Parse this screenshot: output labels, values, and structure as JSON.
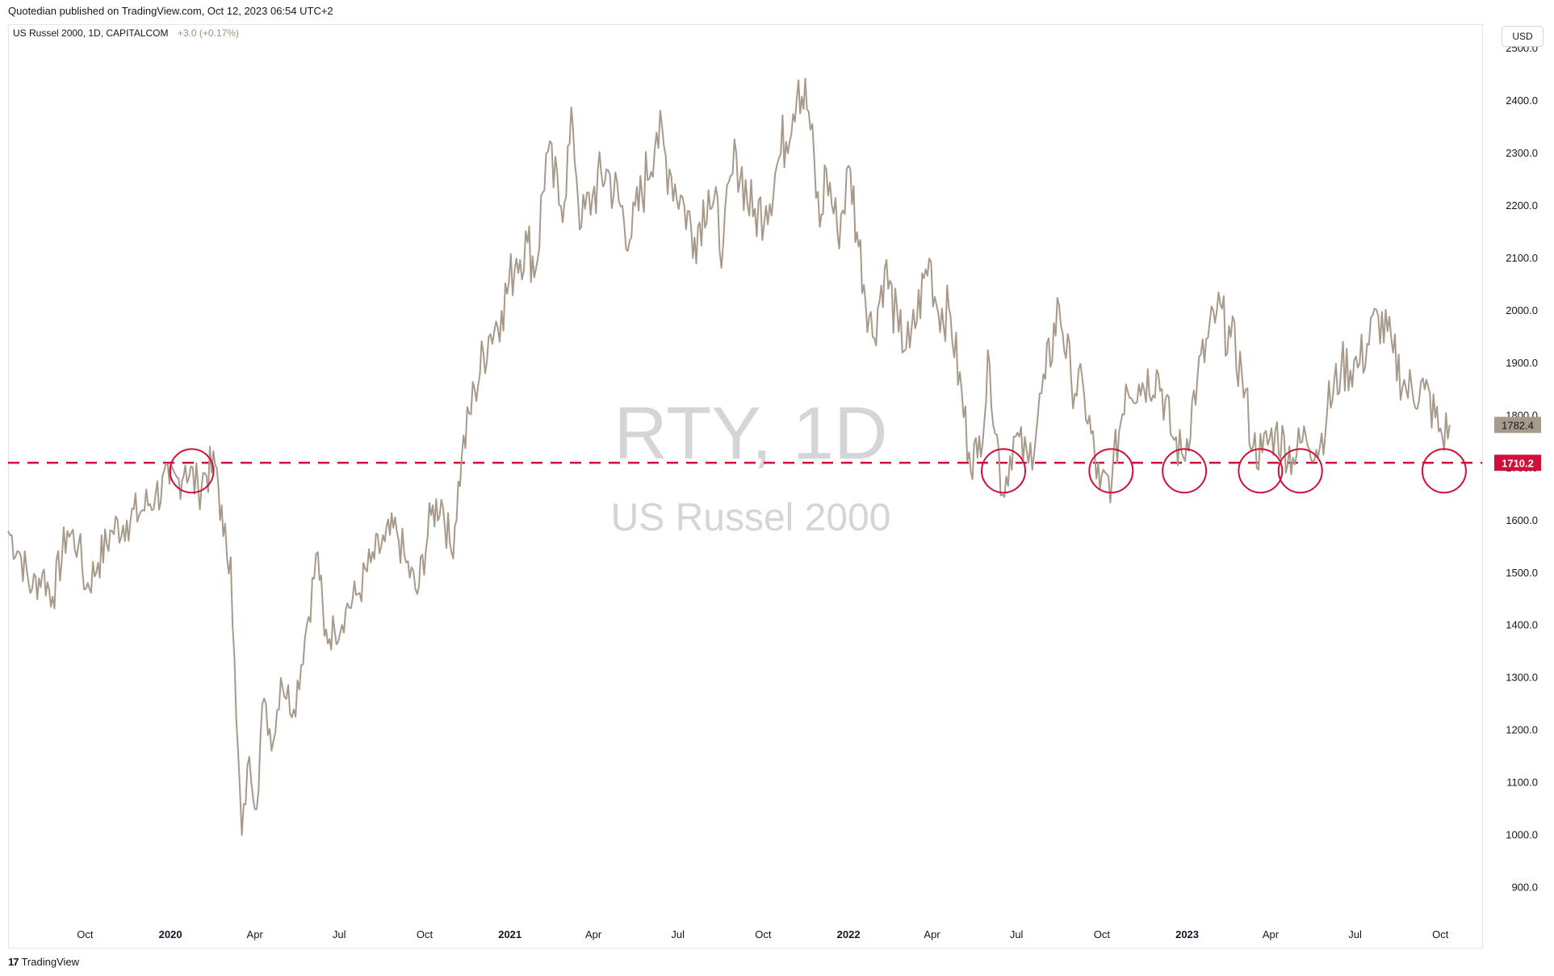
{
  "header": {
    "published_line": "Quotedian published on TradingView.com, Oct 12, 2023 06:54 UTC+2",
    "legend_title": "US Russel 2000, 1D, CAPITALCOM",
    "legend_change": "+3.0 (+0.17%)"
  },
  "currency_button": "USD",
  "watermark": {
    "symbol": "RTY, 1D",
    "name": "US Russel 2000"
  },
  "footer": {
    "logo_mark": "17",
    "brand": "TradingView"
  },
  "colors": {
    "line": "#a89a8a",
    "support": "#d0103a",
    "price_label_bg": "#a89a8a",
    "axis_text": "#131722"
  },
  "icons": {
    "brand_logo": "tradingview-logo-icon"
  },
  "chart_data": {
    "type": "line",
    "title": "US Russel 2000, 1D, CAPITALCOM",
    "x_ticks": [
      {
        "label": "Oct",
        "date": "2019-10-01"
      },
      {
        "label": "2020",
        "date": "2020-01-01"
      },
      {
        "label": "Apr",
        "date": "2020-04-01"
      },
      {
        "label": "Jul",
        "date": "2020-07-01"
      },
      {
        "label": "Oct",
        "date": "2020-10-01"
      },
      {
        "label": "2021",
        "date": "2021-01-01"
      },
      {
        "label": "Apr",
        "date": "2021-04-01"
      },
      {
        "label": "Jul",
        "date": "2021-07-01"
      },
      {
        "label": "Oct",
        "date": "2021-10-01"
      },
      {
        "label": "2022",
        "date": "2022-01-01"
      },
      {
        "label": "Apr",
        "date": "2022-04-01"
      },
      {
        "label": "Jul",
        "date": "2022-07-01"
      },
      {
        "label": "Oct",
        "date": "2022-10-01"
      },
      {
        "label": "2023",
        "date": "2023-01-01"
      },
      {
        "label": "Apr",
        "date": "2023-04-01"
      },
      {
        "label": "Jul",
        "date": "2023-07-01"
      },
      {
        "label": "Oct",
        "date": "2023-10-01"
      }
    ],
    "y_ticks": [
      "900.0",
      "1000.0",
      "1100.0",
      "1200.0",
      "1300.0",
      "1400.0",
      "1500.0",
      "1600.0",
      "1700.0",
      "1800.0",
      "1900.0",
      "2000.0",
      "2100.0",
      "2200.0",
      "2300.0",
      "2400.0",
      "2500.0"
    ],
    "ylim": [
      830,
      2545
    ],
    "xlim": [
      "2019-07-10",
      "2023-11-15"
    ],
    "last_price": "1782.4",
    "support_level": {
      "label": "1710.2",
      "value": 1710.2
    },
    "series": [
      {
        "points": [
          [
            "2019-07-10",
            1580
          ],
          [
            "2019-07-22",
            1540
          ],
          [
            "2019-08-05",
            1470
          ],
          [
            "2019-08-16",
            1500
          ],
          [
            "2019-08-27",
            1455
          ],
          [
            "2019-09-12",
            1580
          ],
          [
            "2019-09-24",
            1555
          ],
          [
            "2019-10-02",
            1470
          ],
          [
            "2019-10-15",
            1520
          ],
          [
            "2019-10-30",
            1580
          ],
          [
            "2019-11-15",
            1600
          ],
          [
            "2019-12-02",
            1620
          ],
          [
            "2019-12-16",
            1650
          ],
          [
            "2019-12-31",
            1670
          ],
          [
            "2020-01-10",
            1680
          ],
          [
            "2020-01-17",
            1705
          ],
          [
            "2020-01-31",
            1660
          ],
          [
            "2020-02-07",
            1690
          ],
          [
            "2020-02-20",
            1700
          ],
          [
            "2020-02-27",
            1570
          ],
          [
            "2020-03-06",
            1530
          ],
          [
            "2020-03-12",
            1220
          ],
          [
            "2020-03-18",
            1000
          ],
          [
            "2020-03-26",
            1150
          ],
          [
            "2020-04-03",
            1050
          ],
          [
            "2020-04-09",
            1250
          ],
          [
            "2020-04-21",
            1180
          ],
          [
            "2020-04-29",
            1300
          ],
          [
            "2020-05-13",
            1240
          ],
          [
            "2020-05-27",
            1400
          ],
          [
            "2020-06-08",
            1540
          ],
          [
            "2020-06-15",
            1380
          ],
          [
            "2020-06-26",
            1390
          ],
          [
            "2020-07-08",
            1430
          ],
          [
            "2020-07-21",
            1460
          ],
          [
            "2020-08-04",
            1520
          ],
          [
            "2020-08-19",
            1560
          ],
          [
            "2020-09-01",
            1580
          ],
          [
            "2020-09-11",
            1520
          ],
          [
            "2020-09-23",
            1460
          ],
          [
            "2020-10-08",
            1610
          ],
          [
            "2020-10-19",
            1640
          ],
          [
            "2020-10-30",
            1540
          ],
          [
            "2020-11-10",
            1720
          ],
          [
            "2020-11-24",
            1850
          ],
          [
            "2020-12-09",
            1950
          ],
          [
            "2020-12-23",
            2000
          ],
          [
            "2021-01-08",
            2100
          ],
          [
            "2021-01-20",
            2130
          ],
          [
            "2021-01-29",
            2080
          ],
          [
            "2021-02-09",
            2300
          ],
          [
            "2021-02-25",
            2200
          ],
          [
            "2021-03-10",
            2350
          ],
          [
            "2021-03-19",
            2160
          ],
          [
            "2021-03-31",
            2220
          ],
          [
            "2021-04-15",
            2270
          ],
          [
            "2021-05-12",
            2140
          ],
          [
            "2021-06-08",
            2340
          ],
          [
            "2021-06-22",
            2270
          ],
          [
            "2021-07-08",
            2200
          ],
          [
            "2021-07-19",
            2140
          ],
          [
            "2021-08-03",
            2230
          ],
          [
            "2021-08-19",
            2130
          ],
          [
            "2021-09-02",
            2300
          ],
          [
            "2021-09-20",
            2180
          ],
          [
            "2021-10-04",
            2200
          ],
          [
            "2021-10-20",
            2300
          ],
          [
            "2021-11-08",
            2440
          ],
          [
            "2021-11-19",
            2380
          ],
          [
            "2021-12-01",
            2160
          ],
          [
            "2021-12-08",
            2270
          ],
          [
            "2021-12-20",
            2150
          ],
          [
            "2022-01-03",
            2270
          ],
          [
            "2022-01-10",
            2150
          ],
          [
            "2022-01-27",
            1950
          ],
          [
            "2022-02-09",
            2080
          ],
          [
            "2022-02-24",
            1960
          ],
          [
            "2022-03-08",
            1930
          ],
          [
            "2022-03-29",
            2100
          ],
          [
            "2022-04-06",
            2010
          ],
          [
            "2022-04-21",
            1990
          ],
          [
            "2022-05-11",
            1730
          ],
          [
            "2022-05-20",
            1720
          ],
          [
            "2022-06-02",
            1900
          ],
          [
            "2022-06-16",
            1650
          ],
          [
            "2022-06-28",
            1760
          ],
          [
            "2022-07-14",
            1710
          ],
          [
            "2022-08-01",
            1870
          ],
          [
            "2022-08-16",
            2010
          ],
          [
            "2022-08-29",
            1870
          ],
          [
            "2022-09-12",
            1840
          ],
          [
            "2022-09-29",
            1660
          ],
          [
            "2022-10-12",
            1680
          ],
          [
            "2022-10-27",
            1860
          ],
          [
            "2022-11-10",
            1860
          ],
          [
            "2022-12-01",
            1880
          ],
          [
            "2022-12-16",
            1760
          ],
          [
            "2022-12-28",
            1720
          ],
          [
            "2023-01-12",
            1870
          ],
          [
            "2023-02-02",
            2000
          ],
          [
            "2023-02-17",
            1950
          ],
          [
            "2023-03-01",
            1880
          ],
          [
            "2023-03-13",
            1740
          ],
          [
            "2023-03-23",
            1730
          ],
          [
            "2023-04-06",
            1770
          ],
          [
            "2023-04-25",
            1720
          ],
          [
            "2023-05-09",
            1760
          ],
          [
            "2023-05-24",
            1740
          ],
          [
            "2023-06-01",
            1810
          ],
          [
            "2023-06-16",
            1890
          ],
          [
            "2023-07-06",
            1900
          ],
          [
            "2023-07-26",
            1990
          ],
          [
            "2023-08-11",
            1920
          ],
          [
            "2023-08-25",
            1850
          ],
          [
            "2023-09-14",
            1850
          ],
          [
            "2023-10-03",
            1760
          ],
          [
            "2023-10-11",
            1782.4
          ]
        ]
      }
    ],
    "annotations": {
      "circled_dates": [
        "2020-01-24",
        "2022-06-17",
        "2022-10-11",
        "2022-12-29",
        "2023-03-21",
        "2023-05-03",
        "2023-10-05"
      ]
    }
  }
}
